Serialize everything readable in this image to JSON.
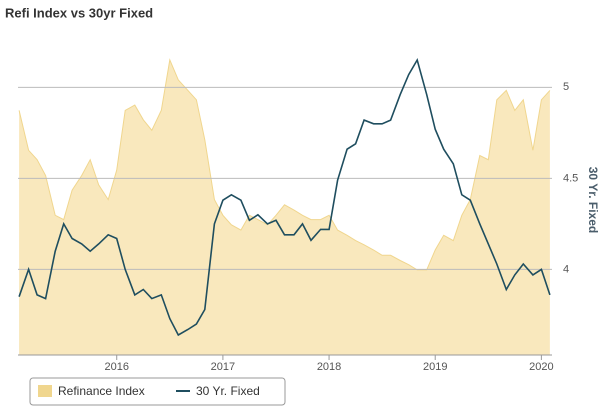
{
  "chart_data": {
    "type": "area-line",
    "title": "Refi Index vs 30yr Fixed",
    "y2_label": "30 Yr. Fixed",
    "x": [
      2015.08,
      2015.17,
      2015.25,
      2015.33,
      2015.42,
      2015.5,
      2015.58,
      2015.67,
      2015.75,
      2015.83,
      2015.92,
      2016.0,
      2016.08,
      2016.17,
      2016.25,
      2016.33,
      2016.42,
      2016.5,
      2016.58,
      2016.67,
      2016.75,
      2016.83,
      2016.92,
      2017.0,
      2017.08,
      2017.17,
      2017.25,
      2017.33,
      2017.42,
      2017.5,
      2017.58,
      2017.67,
      2017.75,
      2017.83,
      2017.92,
      2018.0,
      2018.08,
      2018.17,
      2018.25,
      2018.33,
      2018.42,
      2018.5,
      2018.58,
      2018.67,
      2018.75,
      2018.83,
      2018.92,
      2019.0,
      2019.08,
      2019.17,
      2019.25,
      2019.33,
      2019.42,
      2019.5,
      2019.58,
      2019.67,
      2019.75,
      2019.83,
      2019.92,
      2020.0,
      2020.08
    ],
    "xlim": [
      2015.07,
      2020.1
    ],
    "xticks": [
      2016,
      2017,
      2018,
      2019,
      2020
    ],
    "ylim": [
      0,
      3000
    ],
    "y2lim": [
      3.53,
      5.26
    ],
    "y2ticks": [
      4,
      4.5,
      5
    ],
    "grid": true,
    "legend": "bottom-left",
    "series": [
      {
        "name": "Refinance Index",
        "type": "area",
        "axis": "y",
        "color": "#f9e8bd",
        "stroke": "#f0d68e",
        "values": [
          2330,
          1950,
          1860,
          1710,
          1330,
          1290,
          1570,
          1710,
          1860,
          1620,
          1480,
          1760,
          2330,
          2380,
          2240,
          2140,
          2330,
          2810,
          2620,
          2520,
          2430,
          2050,
          1480,
          1330,
          1240,
          1190,
          1330,
          1290,
          1240,
          1330,
          1430,
          1380,
          1330,
          1290,
          1290,
          1330,
          1190,
          1140,
          1090,
          1050,
          1000,
          950,
          950,
          900,
          860,
          810,
          810,
          1000,
          1140,
          1090,
          1330,
          1480,
          1900,
          1860,
          2430,
          2520,
          2330,
          2430,
          1950,
          2430,
          2520
        ]
      },
      {
        "name": "30 Yr. Fixed",
        "type": "line",
        "axis": "y2",
        "color": "#1f4e5f",
        "values": [
          3.85,
          4.0,
          3.86,
          3.84,
          4.1,
          4.25,
          4.17,
          4.14,
          4.1,
          4.14,
          4.19,
          4.17,
          4.0,
          3.86,
          3.89,
          3.84,
          3.86,
          3.73,
          3.64,
          3.67,
          3.7,
          3.78,
          4.25,
          4.38,
          4.41,
          4.38,
          4.27,
          4.3,
          4.25,
          4.27,
          4.19,
          4.19,
          4.25,
          4.16,
          4.22,
          4.22,
          4.49,
          4.66,
          4.69,
          4.82,
          4.8,
          4.8,
          4.82,
          4.96,
          5.07,
          5.15,
          4.96,
          4.77,
          4.66,
          4.58,
          4.41,
          4.38,
          4.25,
          4.14,
          4.03,
          3.89,
          3.97,
          4.03,
          3.97,
          4.0,
          3.86
        ]
      }
    ]
  }
}
